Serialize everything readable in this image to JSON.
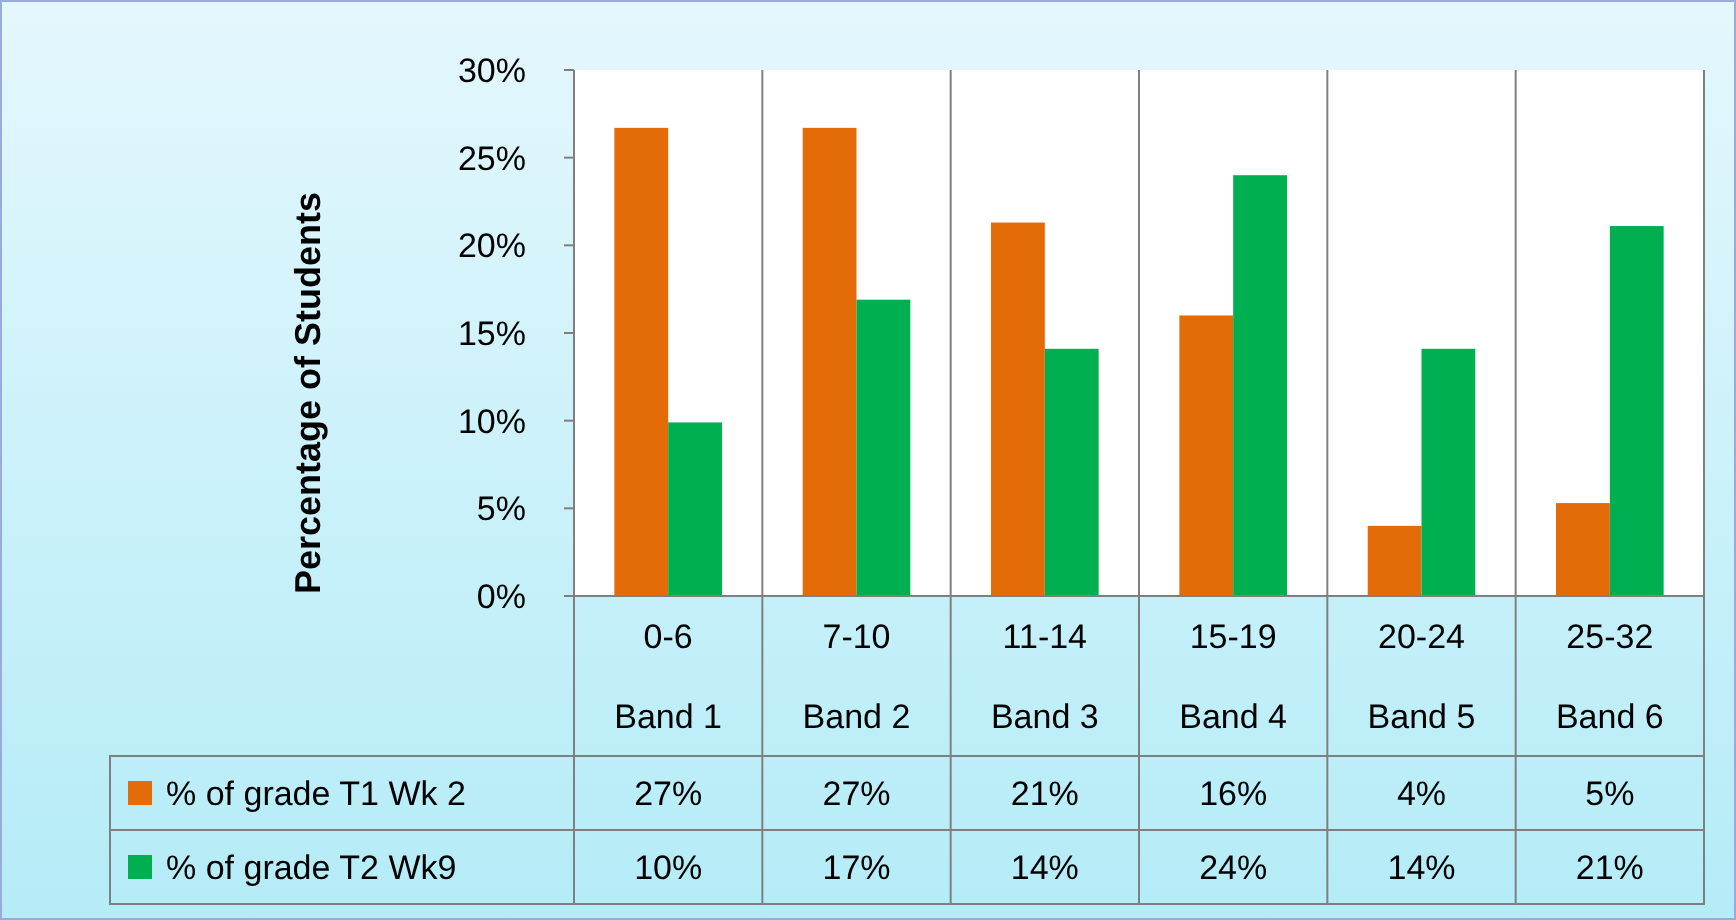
{
  "chart_data": {
    "type": "bar",
    "ylabel": "Percentage of Students",
    "categories": [
      "0-6\nBand 1",
      "7-10\nBand 2",
      "11-14\nBand 3",
      "15-19\nBand 4",
      "20-24\nBand 5",
      "25-32\nBand 6"
    ],
    "series": [
      {
        "name": "% of grade T1 Wk 2",
        "color": "#e36c09",
        "values": [
          26.7,
          26.7,
          21.3,
          16,
          4,
          5.3
        ],
        "value_labels": [
          "27%",
          "27%",
          "21%",
          "16%",
          "4%",
          "5%"
        ]
      },
      {
        "name": "% of grade T2 Wk9",
        "color": "#00b050",
        "values": [
          9.9,
          16.9,
          14.1,
          24,
          14.1,
          21.1
        ],
        "value_labels": [
          "10%",
          "17%",
          "14%",
          "24%",
          "14%",
          "21%"
        ]
      }
    ],
    "ylim": [
      0,
      30
    ],
    "yticks": [
      {
        "value": 0,
        "label": "0%"
      },
      {
        "value": 5,
        "label": "5%"
      },
      {
        "value": 10,
        "label": "10%"
      },
      {
        "value": 15,
        "label": "15%"
      },
      {
        "value": 20,
        "label": "20%"
      },
      {
        "value": 25,
        "label": "25%"
      },
      {
        "value": 30,
        "label": "30%"
      }
    ],
    "grid": false,
    "legend": "bottom left"
  }
}
